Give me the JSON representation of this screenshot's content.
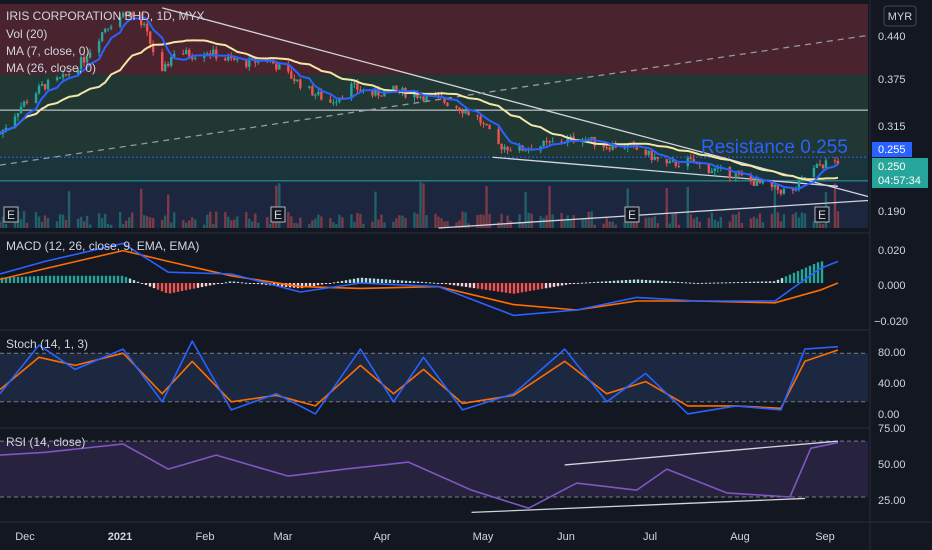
{
  "header": {
    "symbol": "IRIS CORPORATION BHD, 1D, MYX",
    "vol": "Vol (20)",
    "ma7": "MA (7, close, 0)",
    "ma26": "MA (26, close, 0)",
    "currency": "MYR"
  },
  "annotations": {
    "resistance": "Resistance 0.255",
    "price_badge": "0.255",
    "last_price": "0.250",
    "countdown": "04:57:34",
    "earnings_marker": "E"
  },
  "price_axis": {
    "ticks": [
      "0.440",
      "0.375",
      "0.315",
      "0.190"
    ]
  },
  "macd_pane": {
    "title": "MACD (12, 26, close, 9, EMA, EMA)",
    "ticks": [
      "0.020",
      "0.000",
      "−0.020"
    ]
  },
  "stoch_pane": {
    "title": "Stoch (14, 1, 3)",
    "ticks": [
      "80.00",
      "40.00",
      "0.00"
    ]
  },
  "rsi_pane": {
    "title": "RSI (14, close)",
    "ticks": [
      "75.00",
      "50.00",
      "25.00"
    ]
  },
  "time_axis": [
    "Dec",
    "2021",
    "Feb",
    "Mar",
    "Apr",
    "May",
    "Jun",
    "Jul",
    "Aug",
    "Sep"
  ],
  "colors": {
    "background": "#131722",
    "up": "#26a69a",
    "down": "#ef5350",
    "ma7": "#2962ff",
    "ma26": "#f5e6a8",
    "macd_line": "#2962ff",
    "signal_line": "#ff6d00",
    "stoch_k": "#2962ff",
    "stoch_d": "#ff6d00",
    "rsi": "#7e57c2",
    "resistance_text": "#2962ff",
    "red_zone": "#5c2a33",
    "green_zone": "#24403a",
    "teal_zone": "#1b3b40",
    "blue_zone": "#1e2a44"
  },
  "chart_data": {
    "type": "candlestick",
    "title": "IRIS CORPORATION BHD, 1D, MYX",
    "currency": "MYR",
    "x_range": [
      "2020-11-25",
      "2021-09-10"
    ],
    "ylim": [
      0.165,
      0.455
    ],
    "key_levels": {
      "zone_red": [
        0.36,
        0.45
      ],
      "zone_green": [
        0.255,
        0.36
      ],
      "level_white": 0.315,
      "resistance": 0.255,
      "level_teal": 0.225
    },
    "close_series": [
      [
        "2020-11-25",
        0.285
      ],
      [
        "2020-12-02",
        0.32
      ],
      [
        "2020-12-09",
        0.345
      ],
      [
        "2020-12-16",
        0.355
      ],
      [
        "2020-12-23",
        0.38
      ],
      [
        "2020-12-30",
        0.42
      ],
      [
        "2021-01-06",
        0.44
      ],
      [
        "2021-01-12",
        0.42
      ],
      [
        "2021-01-18",
        0.36
      ],
      [
        "2021-01-22",
        0.39
      ],
      [
        "2021-01-28",
        0.385
      ],
      [
        "2021-02-02",
        0.39
      ],
      [
        "2021-02-08",
        0.38
      ],
      [
        "2021-02-15",
        0.375
      ],
      [
        "2021-02-22",
        0.38
      ],
      [
        "2021-03-01",
        0.36
      ],
      [
        "2021-03-08",
        0.34
      ],
      [
        "2021-03-15",
        0.325
      ],
      [
        "2021-03-22",
        0.345
      ],
      [
        "2021-03-29",
        0.335
      ],
      [
        "2021-04-05",
        0.34
      ],
      [
        "2021-04-12",
        0.335
      ],
      [
        "2021-04-19",
        0.33
      ],
      [
        "2021-04-26",
        0.32
      ],
      [
        "2021-05-03",
        0.305
      ],
      [
        "2021-05-10",
        0.27
      ],
      [
        "2021-05-17",
        0.265
      ],
      [
        "2021-05-24",
        0.27
      ],
      [
        "2021-05-31",
        0.275
      ],
      [
        "2021-06-07",
        0.28
      ],
      [
        "2021-06-14",
        0.27
      ],
      [
        "2021-06-21",
        0.27
      ],
      [
        "2021-06-28",
        0.26
      ],
      [
        "2021-07-05",
        0.245
      ],
      [
        "2021-07-12",
        0.25
      ],
      [
        "2021-07-19",
        0.24
      ],
      [
        "2021-07-26",
        0.235
      ],
      [
        "2021-08-02",
        0.225
      ],
      [
        "2021-08-09",
        0.215
      ],
      [
        "2021-08-16",
        0.21
      ],
      [
        "2021-08-20",
        0.23
      ],
      [
        "2021-08-25",
        0.245
      ],
      [
        "2021-08-31",
        0.25
      ]
    ],
    "trendlines": [
      {
        "from": [
          "2021-01-18",
          0.445
        ],
        "to": [
          "2021-09-10",
          0.205
        ]
      },
      {
        "from": [
          "2021-05-08",
          0.255
        ],
        "to": [
          "2021-08-31",
          0.218
        ]
      },
      {
        "from": [
          "2020-11-25",
          0.245
        ],
        "to": [
          "2021-09-10",
          0.41
        ]
      },
      {
        "from": [
          "2021-04-20",
          0.165
        ],
        "to": [
          "2021-09-10",
          0.2
        ]
      }
    ],
    "macd": {
      "ylim": [
        -0.025,
        0.025
      ],
      "macd": [
        [
          "2020-11-25",
          0.005
        ],
        [
          "2020-12-10",
          0.012
        ],
        [
          "2021-01-05",
          0.022
        ],
        [
          "2021-01-20",
          0.006
        ],
        [
          "2021-02-10",
          0.005
        ],
        [
          "2021-03-05",
          -0.005
        ],
        [
          "2021-03-25",
          0.0
        ],
        [
          "2021-04-20",
          -0.002
        ],
        [
          "2021-05-15",
          -0.018
        ],
        [
          "2021-06-05",
          -0.015
        ],
        [
          "2021-06-25",
          -0.008
        ],
        [
          "2021-07-15",
          -0.01
        ],
        [
          "2021-08-10",
          -0.01
        ],
        [
          "2021-08-25",
          0.008
        ],
        [
          "2021-08-31",
          0.012
        ]
      ],
      "signal": [
        [
          "2020-11-25",
          0.002
        ],
        [
          "2020-12-10",
          0.008
        ],
        [
          "2021-01-05",
          0.018
        ],
        [
          "2021-01-20",
          0.012
        ],
        [
          "2021-02-10",
          0.004
        ],
        [
          "2021-03-05",
          -0.002
        ],
        [
          "2021-03-25",
          -0.003
        ],
        [
          "2021-04-20",
          -0.002
        ],
        [
          "2021-05-15",
          -0.012
        ],
        [
          "2021-06-05",
          -0.015
        ],
        [
          "2021-06-25",
          -0.01
        ],
        [
          "2021-07-15",
          -0.01
        ],
        [
          "2021-08-10",
          -0.011
        ],
        [
          "2021-08-25",
          -0.004
        ],
        [
          "2021-08-31",
          0.0
        ]
      ]
    },
    "stoch": {
      "ylim": [
        0,
        100
      ],
      "k": [
        [
          "2020-11-25",
          30
        ],
        [
          "2020-12-08",
          90
        ],
        [
          "2020-12-20",
          60
        ],
        [
          "2021-01-05",
          85
        ],
        [
          "2021-01-18",
          20
        ],
        [
          "2021-01-28",
          95
        ],
        [
          "2021-02-10",
          10
        ],
        [
          "2021-02-25",
          30
        ],
        [
          "2021-03-10",
          5
        ],
        [
          "2021-03-25",
          85
        ],
        [
          "2021-04-05",
          20
        ],
        [
          "2021-04-15",
          75
        ],
        [
          "2021-04-28",
          10
        ],
        [
          "2021-05-15",
          30
        ],
        [
          "2021-06-01",
          85
        ],
        [
          "2021-06-15",
          20
        ],
        [
          "2021-06-28",
          55
        ],
        [
          "2021-07-12",
          5
        ],
        [
          "2021-07-28",
          15
        ],
        [
          "2021-08-12",
          10
        ],
        [
          "2021-08-20",
          85
        ],
        [
          "2021-08-31",
          88
        ]
      ],
      "d": [
        [
          "2020-11-25",
          35
        ],
        [
          "2020-12-08",
          75
        ],
        [
          "2020-12-20",
          65
        ],
        [
          "2021-01-05",
          80
        ],
        [
          "2021-01-18",
          30
        ],
        [
          "2021-01-28",
          70
        ],
        [
          "2021-02-10",
          20
        ],
        [
          "2021-02-25",
          28
        ],
        [
          "2021-03-10",
          15
        ],
        [
          "2021-03-25",
          65
        ],
        [
          "2021-04-05",
          30
        ],
        [
          "2021-04-15",
          60
        ],
        [
          "2021-04-28",
          18
        ],
        [
          "2021-05-15",
          28
        ],
        [
          "2021-06-01",
          70
        ],
        [
          "2021-06-15",
          30
        ],
        [
          "2021-06-28",
          45
        ],
        [
          "2021-07-12",
          15
        ],
        [
          "2021-07-28",
          15
        ],
        [
          "2021-08-12",
          12
        ],
        [
          "2021-08-20",
          70
        ],
        [
          "2021-08-31",
          84
        ]
      ]
    },
    "rsi": {
      "ylim": [
        15,
        78
      ],
      "values": [
        [
          "2020-11-25",
          60
        ],
        [
          "2020-12-10",
          62
        ],
        [
          "2021-01-05",
          68
        ],
        [
          "2021-01-20",
          50
        ],
        [
          "2021-02-05",
          60
        ],
        [
          "2021-03-01",
          45
        ],
        [
          "2021-03-20",
          50
        ],
        [
          "2021-04-10",
          55
        ],
        [
          "2021-05-01",
          35
        ],
        [
          "2021-05-20",
          22
        ],
        [
          "2021-06-05",
          40
        ],
        [
          "2021-06-25",
          35
        ],
        [
          "2021-07-05",
          50
        ],
        [
          "2021-07-25",
          33
        ],
        [
          "2021-08-15",
          30
        ],
        [
          "2021-08-22",
          65
        ],
        [
          "2021-08-31",
          69
        ]
      ]
    }
  }
}
